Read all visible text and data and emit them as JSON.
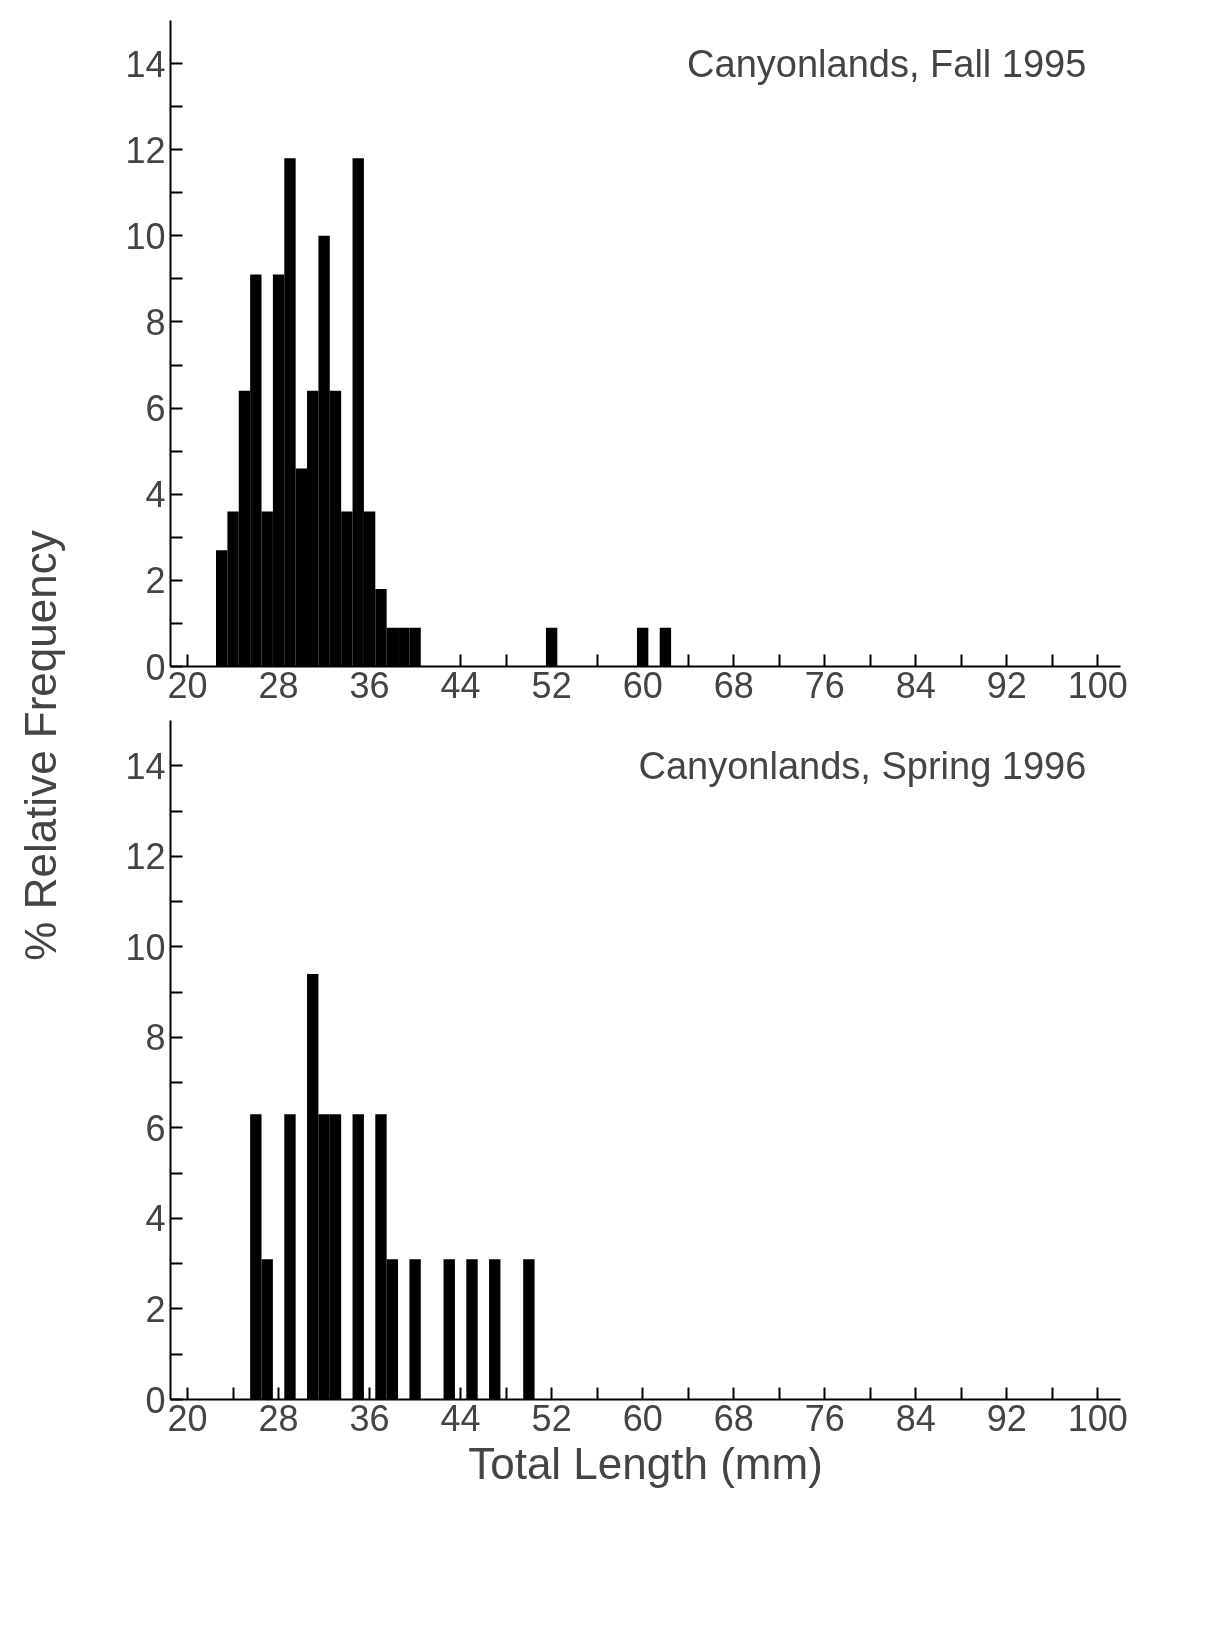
{
  "chart_data": [
    {
      "type": "histogram",
      "ylabel": "% Relative Frequency",
      "annotations": [
        "Canyonlands, Fall 1995"
      ],
      "bins": [
        22.5,
        23.5,
        24.5,
        25.5,
        26.5,
        27.5,
        28.5,
        29.5,
        30.5,
        31.5,
        32.5,
        33.5,
        34.5,
        35.5,
        36.5,
        37.5,
        38.5,
        39.5,
        40.5,
        41.5,
        42.5,
        43.5,
        44.5,
        45.5,
        46.5,
        47.5,
        48.5,
        49.5,
        50.5,
        51.5,
        52.5,
        53.5,
        54.5,
        55.5,
        56.5,
        57.5,
        58.5,
        59.5,
        60.5,
        61.5,
        62.5
      ],
      "values": [
        2.7,
        3.6,
        6.4,
        9.1,
        3.6,
        9.1,
        11.8,
        4.6,
        6.4,
        10.0,
        6.4,
        3.6,
        11.8,
        3.6,
        1.8,
        0.9,
        0.9,
        0.9,
        0,
        0,
        0,
        0,
        0,
        0,
        0,
        0,
        0,
        0,
        0,
        0.9,
        0,
        0,
        0,
        0,
        0,
        0,
        0,
        0.9,
        0,
        0.9
      ],
      "color": "#000000",
      "xlim": [
        18.5,
        102
      ],
      "ylim": [
        0,
        15
      ],
      "xticks": [
        20,
        {
          "value": 24,
          "label": null
        },
        28,
        {
          "value": 32,
          "label": null
        },
        36,
        {
          "value": 40,
          "label": null
        },
        44,
        {
          "value": 48,
          "label": null
        },
        52,
        {
          "value": 56,
          "label": null
        },
        60,
        {
          "value": 64,
          "label": null
        },
        68,
        {
          "value": 72,
          "label": null
        },
        76,
        {
          "value": 80,
          "label": null
        },
        84,
        {
          "value": 88,
          "label": null
        },
        92,
        {
          "value": 96,
          "label": null
        },
        100
      ],
      "yticks": [
        0,
        {
          "value": 1,
          "label": null
        },
        2,
        {
          "value": 3,
          "label": null
        },
        4,
        {
          "value": 5,
          "label": null
        },
        6,
        {
          "value": 7,
          "label": null
        },
        8,
        {
          "value": 9,
          "label": null
        },
        10,
        {
          "value": 11,
          "label": null
        },
        12,
        {
          "value": 13,
          "label": null
        },
        14
      ],
      "grid": false
    },
    {
      "type": "histogram",
      "xlabel": "Total Length (mm)",
      "annotations": [
        "Canyonlands, Spring 1996"
      ],
      "bins": [
        25.5,
        26.5,
        27.5,
        28.5,
        29.5,
        30.5,
        31.5,
        32.5,
        33.5,
        34.5,
        35.5,
        36.5,
        37.5,
        38.5,
        39.5,
        40.5,
        41.5,
        42.5,
        43.5,
        44.5,
        45.5,
        46.5,
        47.5,
        48.5,
        49.5,
        50.5
      ],
      "values": [
        6.3,
        3.1,
        0,
        6.3,
        null,
        9.4,
        6.3,
        6.3,
        null,
        6.3,
        0,
        6.3,
        3.1,
        0,
        3.1,
        0,
        0,
        3.1,
        0,
        3.1,
        0,
        3.1,
        0,
        0,
        3.1
      ],
      "color": "#000000",
      "xlim": [
        18.5,
        102
      ],
      "ylim": [
        0,
        15
      ],
      "xticks": [
        20,
        {
          "value": 24,
          "label": null
        },
        28,
        {
          "value": 32,
          "label": null
        },
        36,
        {
          "value": 40,
          "label": null
        },
        44,
        {
          "value": 48,
          "label": null
        },
        52,
        {
          "value": 56,
          "label": null
        },
        60,
        {
          "value": 64,
          "label": null
        },
        68,
        {
          "value": 72,
          "label": null
        },
        76,
        {
          "value": 80,
          "label": null
        },
        84,
        {
          "value": 88,
          "label": null
        },
        92,
        {
          "value": 96,
          "label": null
        },
        100
      ],
      "yticks": [
        0,
        {
          "value": 1,
          "label": null
        },
        2,
        {
          "value": 3,
          "label": null
        },
        4,
        {
          "value": 5,
          "label": null
        },
        6,
        {
          "value": 7,
          "label": null
        },
        8,
        {
          "value": 9,
          "label": null
        },
        10,
        {
          "value": 11,
          "label": null
        },
        12,
        {
          "value": 13,
          "label": null
        },
        14
      ],
      "grid": false
    }
  ]
}
